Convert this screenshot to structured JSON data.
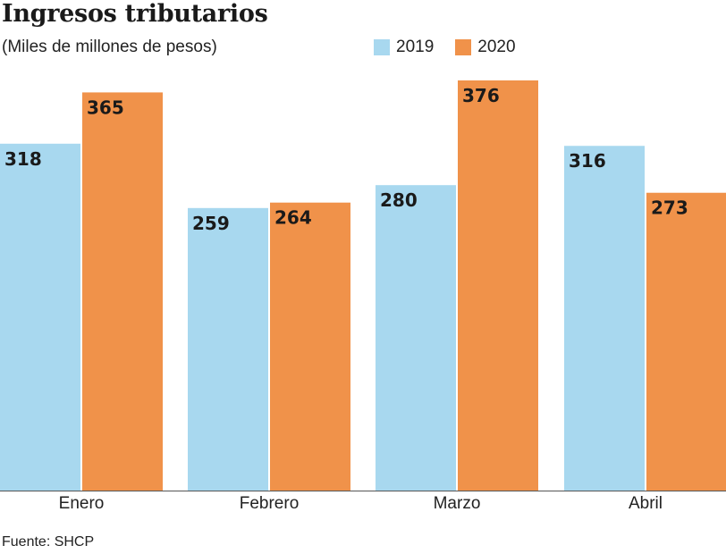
{
  "chart_data": {
    "type": "bar",
    "title": "Ingresos tributarios",
    "subtitle": "(Miles de millones de pesos)",
    "categories": [
      "Enero",
      "Febrero",
      "Marzo",
      "Abril"
    ],
    "series": [
      {
        "name": "2019",
        "color": "#a8d8ef",
        "values": [
          318,
          259,
          280,
          316
        ]
      },
      {
        "name": "2020",
        "color": "#f0924a",
        "values": [
          365,
          264,
          376,
          273
        ]
      }
    ],
    "ylim": [
      0,
      376
    ],
    "grid": false,
    "legend": "top-right",
    "source": "Fuente: SHCP"
  }
}
